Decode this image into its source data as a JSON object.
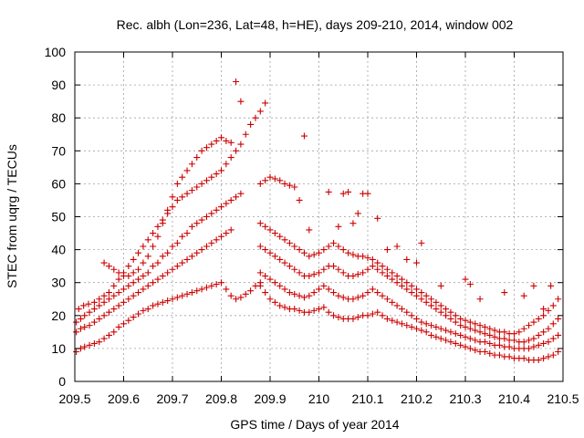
{
  "chart_data": {
    "type": "scatter",
    "title": "Rec. albh (Lon=236, Lat=48, h=HE), days 209-210, 2014, window 002",
    "xlabel": "GPS time / Days of year 2014",
    "ylabel": "STEC from uqrg / TECUs",
    "xlim": [
      209.5,
      210.5
    ],
    "ylim": [
      0,
      100
    ],
    "xticks": [
      209.5,
      209.6,
      209.7,
      209.8,
      209.9,
      210,
      210.1,
      210.2,
      210.3,
      210.4,
      210.5
    ],
    "xtick_labels": [
      "209.5",
      "209.6",
      "209.7",
      "209.8",
      "209.9",
      "210",
      "210.1",
      "210.2",
      "210.3",
      "210.4",
      "210.5"
    ],
    "yticks": [
      0,
      10,
      20,
      30,
      40,
      50,
      60,
      70,
      80,
      90,
      100
    ],
    "ytick_labels": [
      "0",
      "10",
      "20",
      "30",
      "40",
      "50",
      "60",
      "70",
      "80",
      "90",
      "100"
    ],
    "grid": true,
    "marker": "plus",
    "marker_color": "#cc0000",
    "series": [
      {
        "x": [
          209.503,
          209.512,
          209.52,
          209.53,
          209.54,
          209.55,
          209.56,
          209.57,
          209.58,
          209.59,
          209.6,
          209.61,
          209.62,
          209.63,
          209.64,
          209.65,
          209.66,
          209.67,
          209.68,
          209.69,
          209.7,
          209.71,
          209.72,
          209.73,
          209.74,
          209.75,
          209.76,
          209.77,
          209.78,
          209.79,
          209.8,
          209.81,
          209.82,
          209.83,
          209.84,
          209.85,
          209.86,
          209.87,
          209.88
        ],
        "y": [
          9,
          10,
          10.5,
          11,
          11.5,
          12,
          13,
          14,
          15,
          16.5,
          17.5,
          18.5,
          19.5,
          20.5,
          21.5,
          22,
          23,
          23.5,
          24,
          24.5,
          25,
          25.5,
          26,
          26.5,
          27,
          27.5,
          28,
          28.5,
          29,
          29.5,
          30,
          28,
          26,
          25,
          25.5,
          26.5,
          27.5,
          29,
          30
        ]
      },
      {
        "x": [
          209.503,
          209.512,
          209.52,
          209.53,
          209.54,
          209.55,
          209.56,
          209.57,
          209.58,
          209.59,
          209.6,
          209.61,
          209.62,
          209.63,
          209.64,
          209.65,
          209.66,
          209.67,
          209.68,
          209.69,
          209.7,
          209.71,
          209.72,
          209.73,
          209.74,
          209.75,
          209.76,
          209.77,
          209.78,
          209.79,
          209.8,
          209.81,
          209.82
        ],
        "y": [
          15,
          16,
          16.5,
          17,
          18,
          19,
          20,
          21,
          22,
          23,
          24,
          25,
          26,
          27,
          28,
          29,
          30,
          31,
          32,
          33,
          34,
          35,
          36,
          37,
          38,
          39,
          40,
          41,
          42,
          43,
          44,
          45,
          46
        ]
      },
      {
        "x": [
          209.503,
          209.512,
          209.52,
          209.53,
          209.54,
          209.55,
          209.56,
          209.57,
          209.58,
          209.59,
          209.6,
          209.61,
          209.62,
          209.63,
          209.64,
          209.65,
          209.66,
          209.67,
          209.68,
          209.69,
          209.7,
          209.71,
          209.72,
          209.73,
          209.74,
          209.75,
          209.76,
          209.77,
          209.78,
          209.79,
          209.8,
          209.81,
          209.82,
          209.83,
          209.84
        ],
        "y": [
          18,
          19,
          20,
          21,
          22,
          23,
          24,
          25,
          26,
          27,
          28,
          29,
          30,
          31,
          32,
          33,
          35,
          36,
          38,
          39,
          41,
          42,
          44,
          45,
          47,
          48,
          49,
          50,
          51,
          52,
          53,
          54,
          55,
          56,
          57
        ]
      },
      {
        "x": [
          209.508,
          209.518,
          209.528,
          209.54,
          209.55,
          209.56,
          209.57,
          209.58,
          209.59,
          209.6,
          209.61,
          209.62,
          209.63,
          209.64,
          209.65,
          209.66,
          209.67,
          209.68,
          209.69,
          209.7,
          209.71,
          209.72,
          209.73,
          209.74,
          209.75,
          209.76,
          209.77,
          209.78,
          209.79,
          209.8,
          209.81,
          209.82,
          209.83,
          209.84,
          209.85,
          209.86,
          209.87,
          209.88,
          209.89
        ],
        "y": [
          22,
          23,
          23.5,
          24,
          25,
          26,
          27,
          29,
          31,
          33,
          35,
          37,
          39,
          41,
          43,
          45,
          47,
          49,
          51,
          53,
          55,
          56,
          57,
          58,
          59,
          60,
          61,
          62,
          63,
          64,
          66,
          68,
          70,
          72,
          75,
          78,
          80,
          82,
          84.5
        ]
      },
      {
        "x": [
          209.56,
          209.57,
          209.58,
          209.59,
          209.6,
          209.61,
          209.62,
          209.63,
          209.64,
          209.65,
          209.66,
          209.67,
          209.68,
          209.69,
          209.7,
          209.71,
          209.72,
          209.73,
          209.74,
          209.75,
          209.76,
          209.77,
          209.78,
          209.79,
          209.8,
          209.81,
          209.82,
          209.83,
          209.84
        ],
        "y": [
          36,
          35,
          34,
          33,
          32,
          32,
          33,
          34,
          36,
          38,
          41,
          44,
          48,
          52,
          56,
          60,
          62,
          64,
          66,
          68,
          70,
          71,
          72,
          73,
          74,
          73,
          72.5,
          91,
          85
        ]
      },
      {
        "x": [
          209.88,
          209.89,
          209.9,
          209.91,
          209.92,
          209.93,
          209.94,
          209.95,
          209.96,
          209.97,
          209.98,
          209.99,
          210.0,
          210.01,
          210.02,
          210.03,
          210.04,
          210.05,
          210.06,
          210.07,
          210.08,
          210.09,
          210.1,
          210.11,
          210.12,
          210.13,
          210.14,
          210.15,
          210.16,
          210.17,
          210.18,
          210.19,
          210.2,
          210.21,
          210.22,
          210.23,
          210.24,
          210.25,
          210.26,
          210.27,
          210.28,
          210.29,
          210.3,
          210.31,
          210.32,
          210.33,
          210.34,
          210.35,
          210.36,
          210.37,
          210.38,
          210.39,
          210.4,
          210.41,
          210.42,
          210.43,
          210.44,
          210.45,
          210.46,
          210.47,
          210.48,
          210.49
        ],
        "y": [
          29,
          27,
          25,
          24,
          23,
          22.5,
          22,
          22,
          21.5,
          21,
          21,
          21.5,
          22,
          22.5,
          21,
          20,
          19.5,
          19,
          19,
          19,
          19.5,
          20,
          20,
          20.5,
          21,
          20,
          19,
          18.5,
          18,
          17.5,
          17,
          16.5,
          16,
          15.5,
          15,
          14,
          13.5,
          13,
          12.5,
          12,
          11.5,
          11,
          10.5,
          10,
          9.5,
          9,
          9,
          8.5,
          8,
          8,
          7.5,
          7.5,
          7,
          7,
          7,
          6.5,
          6.5,
          6.5,
          7,
          7.5,
          8,
          9
        ]
      },
      {
        "x": [
          209.88,
          209.89,
          209.9,
          209.91,
          209.92,
          209.93,
          209.94,
          209.95,
          209.96,
          209.97,
          209.98,
          209.99,
          210.0,
          210.01,
          210.02,
          210.03,
          210.04,
          210.05,
          210.06,
          210.07,
          210.08,
          210.09,
          210.1,
          210.11,
          210.12,
          210.13,
          210.14,
          210.15,
          210.16,
          210.17,
          210.18,
          210.19,
          210.2,
          210.21,
          210.22,
          210.23,
          210.24,
          210.25,
          210.26,
          210.27,
          210.28,
          210.29,
          210.3,
          210.31,
          210.32,
          210.33,
          210.34,
          210.35,
          210.36,
          210.37,
          210.38,
          210.39,
          210.4,
          210.41,
          210.42,
          210.43,
          210.44,
          210.45,
          210.46,
          210.47,
          210.48,
          210.49
        ],
        "y": [
          33,
          32,
          31,
          30,
          29,
          28,
          27,
          26.5,
          26,
          25.5,
          26,
          27,
          28,
          29,
          28,
          27,
          26,
          25.5,
          25,
          25,
          25.5,
          26,
          27,
          28,
          27,
          26,
          25,
          24,
          23,
          22,
          21,
          20,
          19,
          18,
          17.5,
          17,
          16.5,
          16,
          15.5,
          15,
          14.5,
          14,
          13.5,
          13,
          12.5,
          12,
          12,
          11.5,
          11,
          11,
          10.5,
          10.5,
          10,
          10,
          10,
          10,
          10.5,
          11,
          11.5,
          12,
          13,
          14
        ]
      },
      {
        "x": [
          209.88,
          209.89,
          209.9,
          209.91,
          209.92,
          209.93,
          209.94,
          209.95,
          209.96,
          209.97,
          209.98,
          209.99,
          210.0,
          210.01,
          210.02,
          210.03,
          210.04,
          210.05,
          210.06,
          210.07,
          210.08,
          210.09,
          210.1,
          210.11,
          210.12,
          210.13,
          210.14,
          210.15,
          210.16,
          210.17,
          210.18,
          210.19,
          210.2,
          210.21,
          210.22,
          210.23,
          210.24,
          210.25,
          210.26,
          210.27,
          210.28,
          210.29,
          210.3,
          210.31,
          210.32,
          210.33,
          210.34,
          210.35,
          210.36,
          210.37,
          210.38,
          210.39,
          210.4,
          210.41,
          210.42,
          210.43,
          210.44,
          210.45,
          210.46,
          210.47,
          210.48,
          210.49
        ],
        "y": [
          41,
          40,
          39,
          38,
          37,
          36,
          35,
          34,
          33,
          32,
          32,
          32.5,
          33,
          34,
          35,
          35,
          34,
          33,
          32,
          32,
          32.5,
          33,
          34,
          35,
          34,
          33,
          32,
          31,
          30,
          29,
          28,
          27,
          26,
          25,
          24,
          23,
          22,
          21,
          20,
          19,
          18,
          17,
          16.5,
          16,
          15.5,
          15,
          14.5,
          14,
          13.5,
          13,
          13,
          12.5,
          12.5,
          12,
          12,
          12.5,
          13,
          14,
          15,
          16,
          17.5,
          19
        ]
      },
      {
        "x": [
          209.88,
          209.89,
          209.9,
          209.91,
          209.92,
          209.93,
          209.94,
          209.95,
          209.96,
          209.97,
          209.98,
          209.99,
          210.0,
          210.01,
          210.02,
          210.03,
          210.04,
          210.05,
          210.06,
          210.07,
          210.08,
          210.09,
          210.1,
          210.11,
          210.12,
          210.13,
          210.14,
          210.15,
          210.16,
          210.17,
          210.18,
          210.19,
          210.2,
          210.21,
          210.22,
          210.23,
          210.24,
          210.25,
          210.26,
          210.27,
          210.28,
          210.29,
          210.3,
          210.31,
          210.32,
          210.33,
          210.34,
          210.35,
          210.36,
          210.37,
          210.38,
          210.39,
          210.4,
          210.41,
          210.42,
          210.43,
          210.44,
          210.45,
          210.46,
          210.47,
          210.48,
          210.49
        ],
        "y": [
          48,
          47,
          46,
          45,
          44,
          43,
          42,
          41,
          40,
          39,
          38,
          38.5,
          39,
          40,
          41,
          42,
          41,
          40,
          39,
          38.5,
          38,
          38,
          37.5,
          37,
          36,
          35,
          34,
          33,
          32,
          31,
          30,
          29,
          28,
          27,
          26,
          25,
          24,
          23,
          22,
          21,
          20,
          19,
          18.5,
          18,
          17.5,
          17,
          16.5,
          16,
          15.5,
          15,
          15,
          14.5,
          14.5,
          15,
          16,
          17,
          18,
          19,
          20,
          21.5,
          23,
          25
        ]
      },
      {
        "x": [
          209.88,
          209.89,
          209.9,
          209.91,
          209.92,
          209.93,
          209.94,
          209.95,
          209.96,
          209.97,
          209.98,
          210.02,
          210.04,
          210.05,
          210.06,
          210.07,
          210.08,
          210.09,
          210.1,
          210.12,
          210.14,
          210.16,
          210.18,
          210.2,
          210.21,
          210.25,
          210.3,
          210.31,
          210.33,
          210.38,
          210.42,
          210.44,
          210.46,
          210.475
        ],
        "y": [
          60,
          61,
          62,
          61.5,
          61,
          60,
          59.5,
          59,
          55,
          74.5,
          46,
          57.5,
          47,
          57,
          57.5,
          48,
          51,
          57,
          57,
          49.5,
          40,
          41,
          37,
          36,
          42,
          29,
          31,
          29.5,
          25,
          27,
          26,
          29,
          22,
          29
        ]
      }
    ]
  }
}
